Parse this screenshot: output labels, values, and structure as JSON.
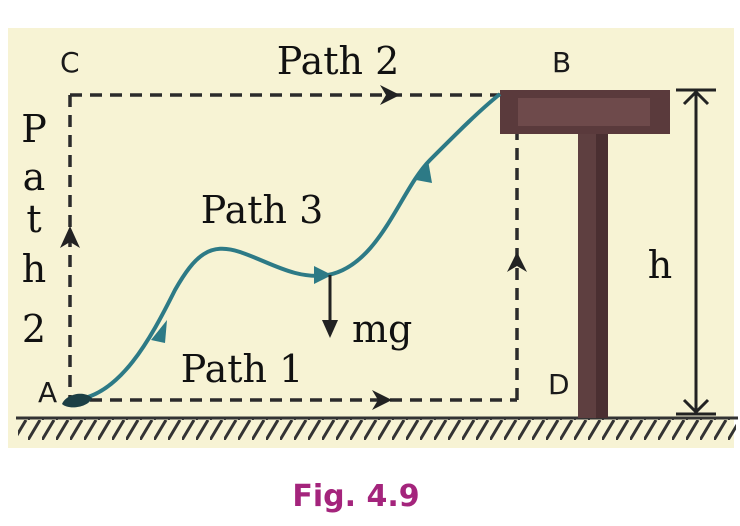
{
  "diagram": {
    "points": {
      "a": "A",
      "b": "B",
      "c": "C",
      "d": "D"
    },
    "labels": {
      "path_top": "Path 2",
      "path_left_chars": [
        "P",
        "a",
        "t",
        "h",
        "2"
      ],
      "path_curve": "Path 3",
      "path_bottom": "Path 1",
      "force": "mg",
      "height": "h"
    },
    "caption": "Fig. 4.9"
  },
  "colors": {
    "background": "#f7f3d4",
    "dashed": "#2b2b2b",
    "curve": "#2d7a86",
    "table": "#5a3a3c",
    "ground": "#333333",
    "caption": "#a4247c"
  }
}
